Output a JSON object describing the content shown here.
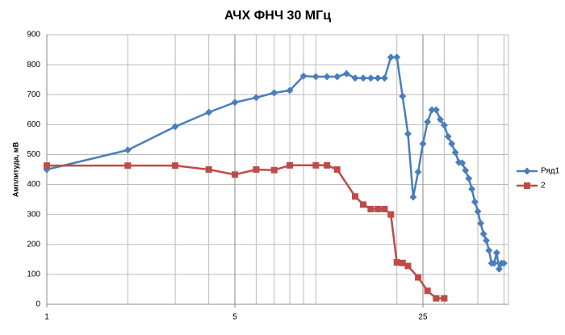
{
  "chart_data": {
    "type": "line",
    "title": "АЧХ ФНЧ 30 МГц",
    "y_label": "Амплитуда, мВ",
    "log_x": true,
    "log_base": 5,
    "xlim": [
      1,
      52
    ],
    "xticks": [
      1,
      5,
      25
    ],
    "x_minor_grid": [
      2,
      3,
      4,
      6,
      7,
      8,
      9,
      10,
      20,
      30,
      40,
      50
    ],
    "ylim": [
      0,
      900
    ],
    "yticks": [
      0,
      100,
      200,
      300,
      400,
      500,
      600,
      700,
      800,
      900
    ],
    "grid": true,
    "legend": "right",
    "series": [
      {
        "name": "Ряд1",
        "color": "#4a7ebb",
        "marker": "diamond",
        "x": [
          1,
          2,
          3,
          4,
          5,
          6,
          7,
          8,
          9,
          10,
          11,
          12,
          13,
          14,
          15,
          16,
          17,
          18,
          19,
          20,
          21,
          22,
          23,
          24,
          25,
          26,
          27,
          28,
          29,
          30,
          31,
          32,
          33,
          34,
          35,
          36,
          37,
          38,
          39,
          40,
          41,
          42,
          43,
          44,
          45,
          46,
          47,
          48,
          49,
          50
        ],
        "values": [
          450,
          515,
          593,
          641,
          674,
          690,
          706,
          714,
          762,
          760,
          760,
          760,
          770,
          755,
          755,
          755,
          755,
          755,
          825,
          825,
          695,
          569,
          358,
          442,
          536,
          609,
          649,
          649,
          617,
          598,
          560,
          536,
          507,
          474,
          472,
          447,
          420,
          385,
          342,
          310,
          270,
          235,
          213,
          180,
          137,
          137,
          172,
          118,
          137,
          137
        ]
      },
      {
        "name": "2",
        "color": "#be4b48",
        "marker": "square",
        "x": [
          1,
          2,
          3,
          4,
          5,
          6,
          7,
          8,
          10,
          11,
          12,
          14,
          15,
          16,
          17,
          18,
          19,
          20,
          21,
          22,
          24,
          26,
          28,
          30
        ],
        "values": [
          463,
          463,
          463,
          450,
          433,
          450,
          448,
          464,
          464,
          464,
          450,
          360,
          333,
          318,
          318,
          318,
          300,
          140,
          138,
          128,
          90,
          45,
          20,
          20
        ]
      }
    ]
  }
}
